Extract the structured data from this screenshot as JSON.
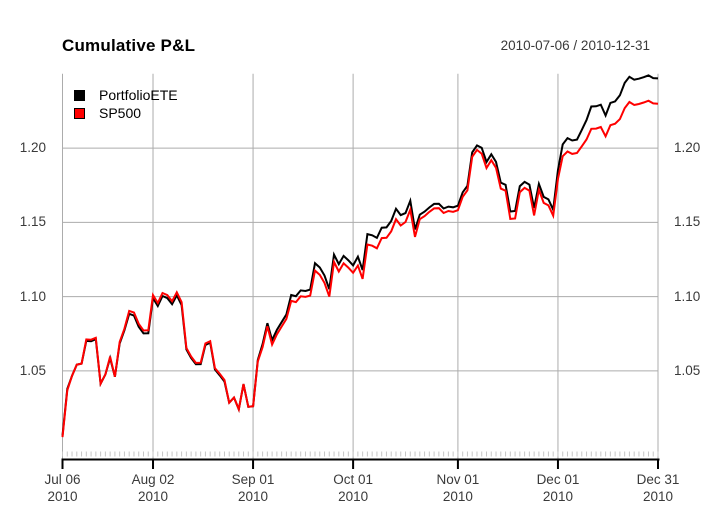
{
  "chart": {
    "title": "Cumulative P&L",
    "date_range": "2010-07-06 / 2010-12-31"
  },
  "chart_data": {
    "type": "line",
    "title": "Cumulative P&L",
    "subtitle_right": "2010-07-06 / 2010-12-31",
    "x_unit": "daily observations, 2010-07-06 through 2010-12-31",
    "n_points": 126,
    "grid": true,
    "legend_position": "top-left",
    "y_axis_sides": "both",
    "ylim": [
      0.99,
      1.25
    ],
    "y_ticks": [
      {
        "v": 1.05,
        "label": "1.05"
      },
      {
        "v": 1.1,
        "label": "1.10"
      },
      {
        "v": 1.15,
        "label": "1.15"
      },
      {
        "v": 1.2,
        "label": "1.20"
      }
    ],
    "x_ticks": [
      {
        "i": 0,
        "l1": "Jul 06",
        "l2": "2010"
      },
      {
        "i": 19,
        "l1": "Aug 02",
        "l2": "2010"
      },
      {
        "i": 40,
        "l1": "Sep 01",
        "l2": "2010"
      },
      {
        "i": 61,
        "l1": "Oct 01",
        "l2": "2010"
      },
      {
        "i": 83,
        "l1": "Nov 01",
        "l2": "2010"
      },
      {
        "i": 104,
        "l1": "Dec 01",
        "l2": "2010"
      },
      {
        "i": 125,
        "l1": "Dec 31",
        "l2": "2010"
      }
    ],
    "colors": {
      "grid": "#acacac",
      "axis": "#000000",
      "minor_tick": "#c6c6c6",
      "text": "#3a3a3a"
    },
    "series": [
      {
        "name": "PortfolioETE",
        "color": "#000000",
        "values": [
          1.0064,
          1.0379,
          1.0466,
          1.0542,
          1.0549,
          1.0702,
          1.07,
          1.0713,
          1.0414,
          1.0476,
          1.0586,
          1.046,
          1.0685,
          1.0773,
          1.0884,
          1.0872,
          1.0797,
          1.0752,
          1.0753,
          1.099,
          1.0937,
          1.1004,
          1.099,
          1.0949,
          1.1009,
          1.0943,
          1.0644,
          1.0587,
          1.0544,
          1.0545,
          1.0674,
          1.069,
          1.0509,
          1.047,
          1.0428,
          1.0286,
          1.032,
          1.0241,
          1.0411,
          1.0258,
          1.0262,
          1.0574,
          1.068,
          1.0821,
          1.0707,
          1.0776,
          1.0828,
          1.088,
          1.1011,
          1.1003,
          1.1042,
          1.1038,
          1.1047,
          1.1225,
          1.1196,
          1.1142,
          1.105,
          1.1283,
          1.1219,
          1.1274,
          1.1245,
          1.121,
          1.1269,
          1.1179,
          1.1421,
          1.1413,
          1.1395,
          1.1464,
          1.1466,
          1.1509,
          1.1591,
          1.1549,
          1.1562,
          1.1645,
          1.1452,
          1.1552,
          1.1572,
          1.16,
          1.1624,
          1.1625,
          1.1593,
          1.1606,
          1.1601,
          1.1612,
          1.1702,
          1.1745,
          1.1971,
          1.2018,
          1.2002,
          1.1906,
          1.1958,
          1.1907,
          1.1767,
          1.1753,
          1.1573,
          1.1576,
          1.1743,
          1.1772,
          1.1754,
          1.1596,
          1.1759,
          1.1671,
          1.1655,
          1.1585,
          1.1854,
          1.2025,
          1.2067,
          1.2051,
          1.2057,
          1.2122,
          1.2188,
          1.228,
          1.2281,
          1.2292,
          1.2219,
          1.2304,
          1.2314,
          1.2355,
          1.2439,
          1.248,
          1.246,
          1.2467,
          1.2477,
          1.2489,
          1.2471,
          1.2469
        ]
      },
      {
        "name": "SP500",
        "color": "#ff0000",
        "values": [
          1.0054,
          1.0369,
          1.0466,
          1.0542,
          1.0549,
          1.0712,
          1.071,
          1.0723,
          1.0414,
          1.0476,
          1.0596,
          1.046,
          1.0695,
          1.0783,
          1.0904,
          1.0892,
          1.0817,
          1.0772,
          1.0773,
          1.101,
          1.0957,
          1.1024,
          1.101,
          1.0969,
          1.1029,
          1.0963,
          1.0654,
          1.0597,
          1.0554,
          1.0555,
          1.0684,
          1.07,
          1.0519,
          1.048,
          1.0438,
          1.0286,
          1.032,
          1.0241,
          1.0411,
          1.0258,
          1.0262,
          1.0564,
          1.066,
          1.0801,
          1.0677,
          1.0746,
          1.0798,
          1.085,
          1.0971,
          1.0963,
          1.1002,
          1.0998,
          1.1007,
          1.1175,
          1.1146,
          1.1092,
          1.1,
          1.1233,
          1.1169,
          1.1224,
          1.1195,
          1.116,
          1.1209,
          1.1119,
          1.1351,
          1.1343,
          1.1325,
          1.1394,
          1.1396,
          1.1439,
          1.1521,
          1.1479,
          1.1502,
          1.1585,
          1.1402,
          1.1522,
          1.1542,
          1.157,
          1.1594,
          1.1595,
          1.1563,
          1.1576,
          1.1571,
          1.1582,
          1.1672,
          1.1715,
          1.1941,
          1.1988,
          1.1962,
          1.1866,
          1.1918,
          1.1867,
          1.1727,
          1.1713,
          1.1523,
          1.1526,
          1.1703,
          1.1732,
          1.1714,
          1.1546,
          1.1719,
          1.1631,
          1.1615,
          1.1545,
          1.1794,
          1.1945,
          1.1977,
          1.1961,
          1.1967,
          1.2012,
          1.2058,
          1.213,
          1.2131,
          1.2142,
          1.2079,
          1.2154,
          1.2164,
          1.2195,
          1.2269,
          1.231,
          1.229,
          1.2297,
          1.2307,
          1.2319,
          1.2301,
          1.2299
        ]
      }
    ]
  }
}
